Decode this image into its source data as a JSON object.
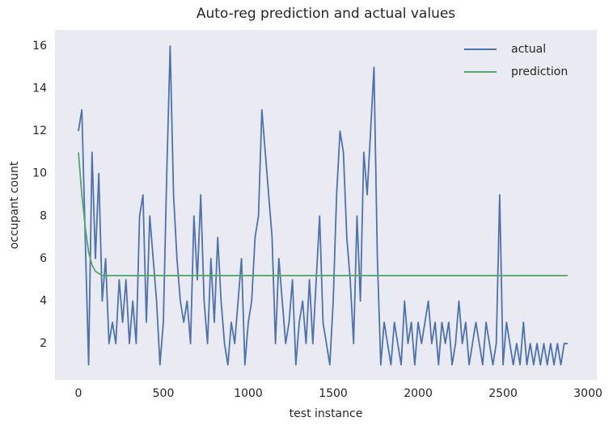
{
  "chart_data": {
    "type": "line",
    "title": "Auto-reg prediction and actual values",
    "xlabel": "test instance",
    "ylabel": "occupant count",
    "xlim": [
      -138,
      3052
    ],
    "ylim": [
      0.29,
      16.76
    ],
    "xticks": [
      0,
      500,
      1000,
      1500,
      2000,
      2500,
      3000
    ],
    "yticks": [
      2,
      4,
      6,
      8,
      10,
      12,
      14,
      16
    ],
    "grid": false,
    "legend": "upper right",
    "background": "#eaeaf2",
    "series": [
      {
        "name": "actual",
        "color": "#4c72b0",
        "x": [
          0,
          20,
          40,
          60,
          80,
          100,
          120,
          140,
          160,
          180,
          200,
          220,
          240,
          260,
          280,
          300,
          320,
          340,
          360,
          380,
          400,
          420,
          440,
          460,
          480,
          500,
          520,
          540,
          560,
          580,
          600,
          620,
          640,
          660,
          680,
          700,
          720,
          740,
          760,
          780,
          800,
          820,
          840,
          860,
          880,
          900,
          920,
          940,
          960,
          980,
          1000,
          1020,
          1040,
          1060,
          1080,
          1100,
          1120,
          1140,
          1160,
          1180,
          1200,
          1220,
          1240,
          1260,
          1280,
          1300,
          1320,
          1340,
          1360,
          1380,
          1400,
          1420,
          1440,
          1460,
          1480,
          1500,
          1520,
          1540,
          1560,
          1580,
          1600,
          1620,
          1640,
          1660,
          1680,
          1700,
          1720,
          1740,
          1760,
          1780,
          1800,
          1820,
          1840,
          1860,
          1880,
          1900,
          1920,
          1940,
          1960,
          1980,
          2000,
          2020,
          2040,
          2060,
          2080,
          2100,
          2120,
          2140,
          2160,
          2180,
          2200,
          2220,
          2240,
          2260,
          2280,
          2300,
          2320,
          2340,
          2360,
          2380,
          2400,
          2420,
          2440,
          2460,
          2480,
          2500,
          2520,
          2540,
          2560,
          2580,
          2600,
          2620,
          2640,
          2660,
          2680,
          2700,
          2720,
          2740,
          2760,
          2780,
          2800,
          2820,
          2840,
          2860,
          2880
        ],
        "values": [
          12,
          13,
          7,
          1,
          11,
          6,
          10,
          4,
          6,
          2,
          3,
          2,
          5,
          3,
          5,
          2,
          4,
          2,
          8,
          9,
          3,
          8,
          6,
          4,
          1,
          3,
          10,
          16,
          9,
          6,
          4,
          3,
          4,
          2,
          8,
          5,
          9,
          4,
          2,
          6,
          3,
          7,
          4,
          2,
          1,
          3,
          2,
          4,
          6,
          1,
          3,
          4,
          7,
          8,
          13,
          11,
          9,
          7,
          2,
          6,
          4,
          2,
          3,
          5,
          1,
          3,
          4,
          2,
          5,
          2,
          5,
          8,
          3,
          2,
          1,
          4,
          9,
          12,
          11,
          7,
          5,
          2,
          8,
          4,
          11,
          9,
          12,
          15,
          6,
          1,
          3,
          2,
          1,
          3,
          2,
          1,
          4,
          2,
          3,
          1,
          3,
          2,
          3,
          4,
          2,
          3,
          1,
          3,
          2,
          3,
          1,
          2,
          4,
          2,
          3,
          1,
          2,
          3,
          2,
          1,
          3,
          2,
          1,
          2,
          9,
          1,
          3,
          2,
          1,
          2,
          1,
          3,
          1,
          2,
          1,
          2,
          1,
          2,
          1,
          2,
          1,
          2,
          1,
          2,
          2
        ]
      },
      {
        "name": "prediction",
        "color": "#55a868",
        "x": [
          0,
          20,
          40,
          60,
          80,
          100,
          120,
          140,
          2880
        ],
        "values": [
          11,
          9,
          7.5,
          6.3,
          5.7,
          5.4,
          5.3,
          5.2,
          5.2
        ]
      }
    ]
  }
}
